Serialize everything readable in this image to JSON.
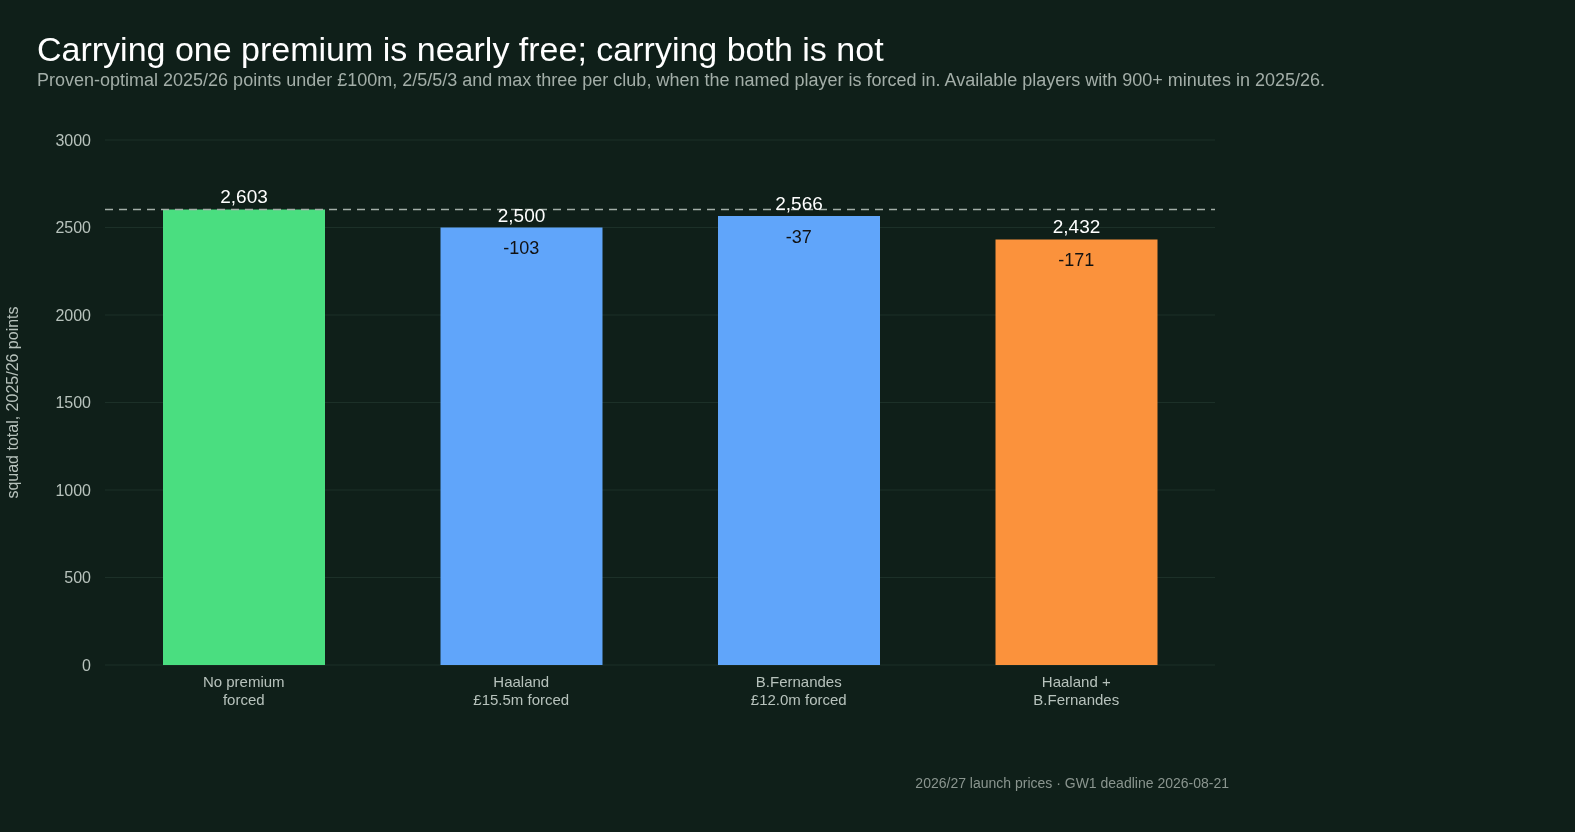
{
  "chart_data": {
    "type": "bar",
    "title": "Carrying one premium is nearly free; carrying both is not",
    "subtitle": "Proven-optimal 2025/26 points under £100m, 2/5/5/3 and max three per club, when the named player is forced in. Available players with 900+ minutes in 2025/26.",
    "ylabel": "squad total, 2025/26 points",
    "categories": [
      "No premium\nforced",
      "Haaland\n£15.5m forced",
      "B.Fernandes\n£12.0m forced",
      "Haaland +\nB.Fernandes"
    ],
    "values": [
      2603,
      2500,
      2566,
      2432
    ],
    "colors": [
      "#4ade80",
      "#60a5fa",
      "#60a5fa",
      "#fb923c"
    ],
    "value_labels": [
      "2,603",
      "2,500",
      "2,566",
      "2,432"
    ],
    "ylim": [
      0,
      3000
    ],
    "yticks": [
      0,
      500,
      1000,
      1500,
      2000,
      2500,
      3000
    ],
    "grid": "y",
    "ref_lines": [
      {
        "axis": "y",
        "value": 2603,
        "color": "#a3aea8",
        "line_style": "dashed"
      }
    ],
    "annotations": [
      {
        "text": "-103",
        "x": "Haaland\n£15.5m forced",
        "y": 2500
      },
      {
        "text": "-37",
        "x": "B.Fernandes\n£12.0m forced",
        "y": 2566
      },
      {
        "text": "-171",
        "x": "Haaland +\nB.Fernandes",
        "y": 2432
      },
      "2026/27 launch prices · GW1 deadline 2026-08-21"
    ]
  }
}
